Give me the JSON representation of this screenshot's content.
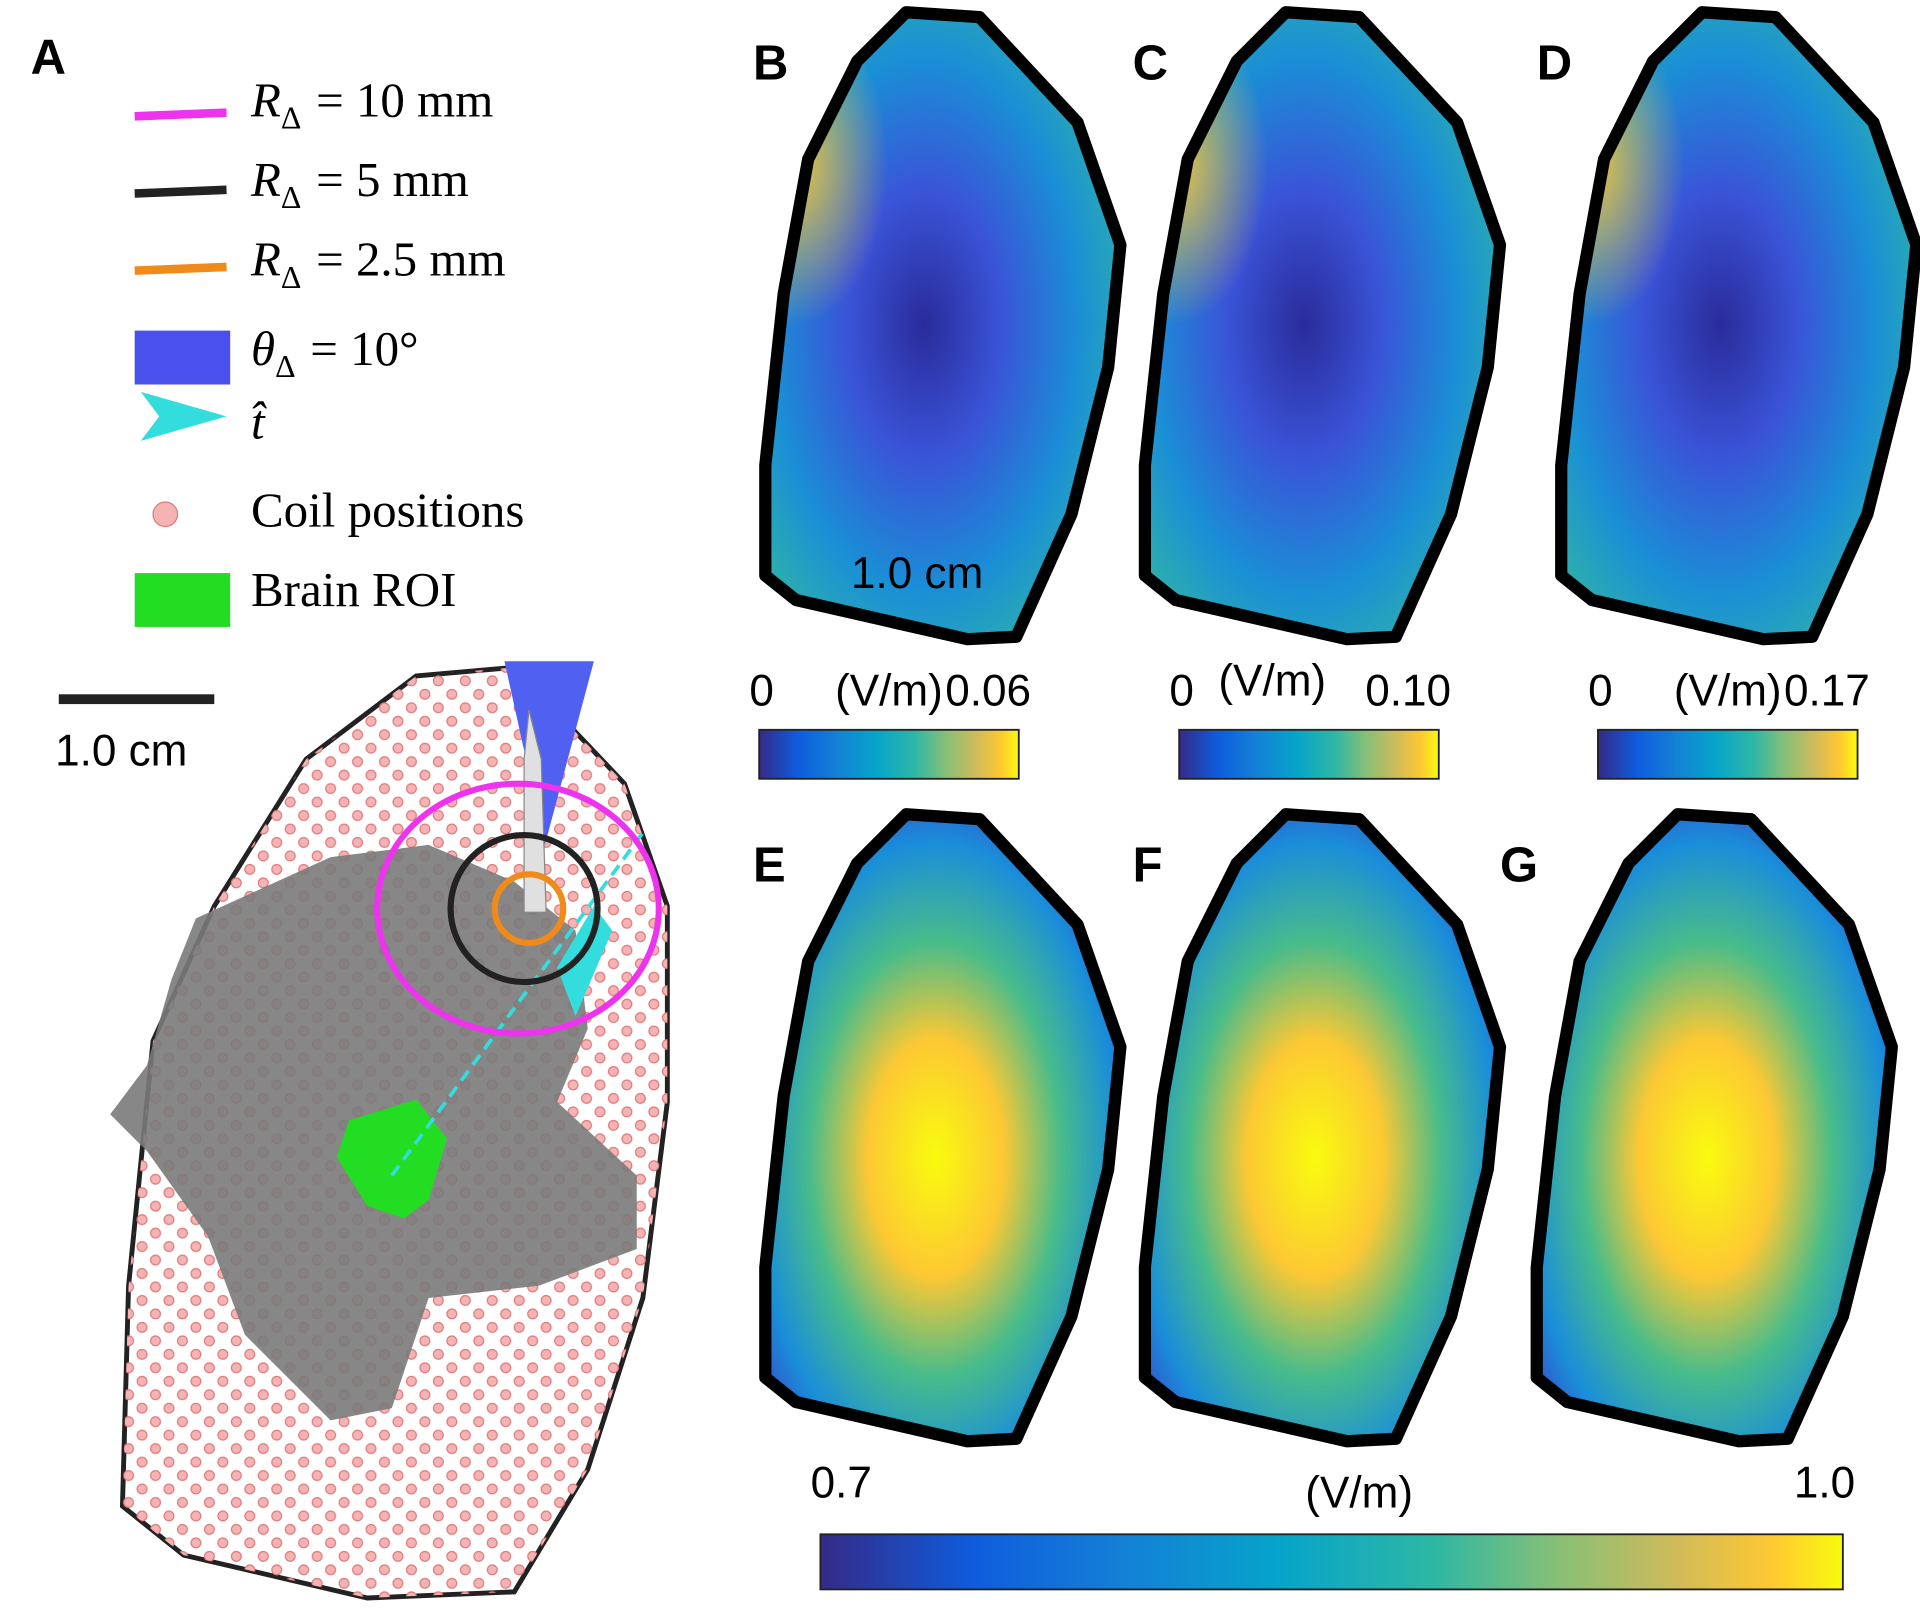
{
  "panels": {
    "labels": [
      "A",
      "B",
      "C",
      "D",
      "E",
      "F",
      "G"
    ]
  },
  "legend": [
    {
      "symbol": "R",
      "subscript": "Δ",
      "text": "= 10 mm"
    },
    {
      "symbol": "R",
      "subscript": "Δ",
      "text": "= 5 mm"
    },
    {
      "symbol": "R",
      "subscript": "Δ",
      "text": "= 2.5 mm"
    },
    {
      "symbol": "θ",
      "subscript": "Δ",
      "text": "= 10°"
    },
    {
      "symbol": "t̂"
    },
    {
      "text": "Coil positions"
    },
    {
      "text": "Brain ROI"
    }
  ],
  "scale_bars": [
    "1.0 cm",
    "1.0 cm"
  ],
  "colorbars": [
    {
      "min": "0",
      "unit": "(V/m)",
      "max": "0.06"
    },
    {
      "min": "0",
      "unit": "(V/m)",
      "max": "0.10"
    },
    {
      "min": "0",
      "unit": "(V/m)",
      "max": "0.17"
    },
    {
      "min": "0.7",
      "unit": "(V/m)",
      "max": "1.0"
    }
  ]
}
